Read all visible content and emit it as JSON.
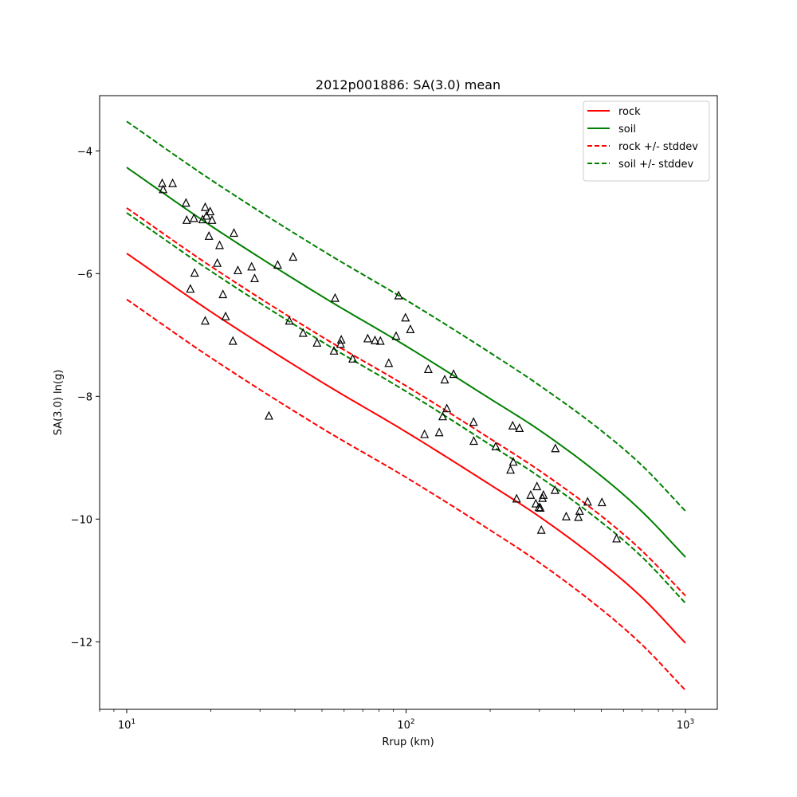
{
  "chart_data": {
    "type": "scatter",
    "title": "2012p001886: SA(3.0) mean",
    "xlabel": "Rrup (km)",
    "ylabel": "SA(3.0) ln(g)",
    "xscale": "log",
    "xlim": [
      8,
      1300
    ],
    "ylim": [
      -13.1,
      -3.1
    ],
    "grid": false,
    "legend_position": "top-right",
    "x_ticks": [
      {
        "value": 10,
        "base": "10",
        "exp": "1"
      },
      {
        "value": 100,
        "base": "10",
        "exp": "2"
      },
      {
        "value": 1000,
        "base": "10",
        "exp": "3"
      }
    ],
    "y_ticks": [
      {
        "value": -4,
        "label": "−4"
      },
      {
        "value": -6,
        "label": "−6"
      },
      {
        "value": -8,
        "label": "−8"
      },
      {
        "value": -10,
        "label": "−10"
      },
      {
        "value": -12,
        "label": "−12"
      }
    ],
    "series": [
      {
        "name": "rock",
        "kind": "line",
        "color": "#ff0000",
        "dash": "solid",
        "x": [
          10,
          20,
          50,
          100,
          200,
          300,
          500,
          700,
          1000
        ],
        "y": [
          -5.67,
          -6.62,
          -7.77,
          -8.58,
          -9.44,
          -9.96,
          -10.71,
          -11.28,
          -12.02
        ]
      },
      {
        "name": "soil",
        "kind": "line",
        "color": "#008000",
        "dash": "solid",
        "x": [
          10,
          20,
          50,
          100,
          200,
          300,
          500,
          700,
          1000
        ],
        "y": [
          -4.27,
          -5.22,
          -6.37,
          -7.18,
          -8.04,
          -8.55,
          -9.3,
          -9.88,
          -10.62
        ]
      },
      {
        "name": "rock +/- stddev",
        "kind": "line",
        "color": "#ff0000",
        "dash": "dashed",
        "x": [
          10,
          20,
          50,
          100,
          200,
          300,
          500,
          700,
          1000
        ],
        "y": [
          -6.42,
          -7.37,
          -8.52,
          -9.32,
          -10.18,
          -10.71,
          -11.47,
          -12.05,
          -12.79
        ]
      },
      {
        "name": "",
        "kind": "line",
        "color": "#ff0000",
        "dash": "dashed",
        "x": [
          10,
          20,
          50,
          100,
          200,
          300,
          500,
          700,
          1000
        ],
        "y": [
          -4.93,
          -5.88,
          -7.03,
          -7.83,
          -8.69,
          -9.21,
          -9.95,
          -10.52,
          -11.25
        ]
      },
      {
        "name": "soil +/- stddev",
        "kind": "line",
        "color": "#008000",
        "dash": "dashed",
        "x": [
          10,
          20,
          50,
          100,
          200,
          300,
          500,
          700,
          1000
        ],
        "y": [
          -3.52,
          -4.47,
          -5.62,
          -6.43,
          -7.29,
          -7.82,
          -8.56,
          -9.13,
          -9.87
        ]
      },
      {
        "name": "",
        "kind": "line",
        "color": "#008000",
        "dash": "dashed",
        "x": [
          10,
          20,
          50,
          100,
          200,
          300,
          500,
          700,
          1000
        ],
        "y": [
          -5.01,
          -5.96,
          -7.11,
          -7.92,
          -8.79,
          -9.31,
          -10.05,
          -10.62,
          -11.37
        ]
      },
      {
        "name": "",
        "kind": "scatter",
        "marker": "triangle",
        "color": "#000000",
        "x": [
          13.4,
          13.5,
          14.6,
          16.3,
          16.4,
          16.9,
          17.4,
          17.5,
          18.7,
          19.1,
          19.1,
          19.3,
          19.7,
          19.9,
          20.2,
          21.1,
          21.5,
          22.1,
          22.6,
          24.0,
          24.2,
          25.0,
          28.0,
          28.7,
          32.3,
          34.7,
          38.2,
          39.4,
          42.8,
          48.0,
          55.2,
          55.7,
          58.3,
          58.6,
          64.4,
          72.9,
          77.4,
          80.9,
          86.7,
          92.1,
          94.0,
          99.5,
          103.6,
          116.4,
          120.1,
          131.4,
          135.2,
          137.5,
          139.9,
          147.9,
          174.4,
          174.7,
          209.4,
          236.5,
          240.7,
          242.0,
          248.7,
          254.6,
          279.3,
          291.3,
          294.0,
          298.9,
          302.4,
          304.8,
          307.8,
          310.1,
          341.2,
          342.2,
          374.3,
          413.7,
          418.0,
          446.5,
          502.3,
          566.8
        ],
        "y": [
          -4.53,
          -4.63,
          -4.53,
          -4.85,
          -5.13,
          -6.25,
          -5.1,
          -5.99,
          -5.12,
          -4.92,
          -6.77,
          -5.06,
          -5.39,
          -4.99,
          -5.13,
          -5.83,
          -5.54,
          -6.34,
          -6.7,
          -7.1,
          -5.34,
          -5.95,
          -5.89,
          -6.08,
          -8.32,
          -5.86,
          -6.77,
          -5.73,
          -6.97,
          -7.13,
          -7.26,
          -6.4,
          -7.15,
          -7.08,
          -7.39,
          -7.06,
          -7.09,
          -7.1,
          -7.46,
          -7.02,
          -6.36,
          -6.72,
          -6.91,
          -8.62,
          -7.56,
          -8.59,
          -8.33,
          -7.73,
          -8.2,
          -7.64,
          -8.42,
          -8.73,
          -8.82,
          -9.2,
          -8.48,
          -9.07,
          -9.67,
          -8.52,
          -9.61,
          -9.75,
          -9.47,
          -9.81,
          -9.82,
          -10.18,
          -9.66,
          -9.61,
          -9.53,
          -8.85,
          -9.96,
          -9.97,
          -9.87,
          -9.72,
          -9.73,
          -10.32
        ]
      }
    ]
  }
}
